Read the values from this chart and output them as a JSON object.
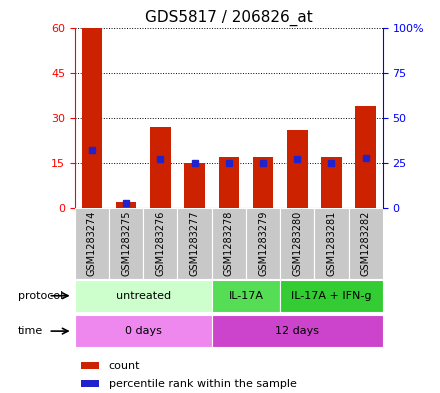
{
  "title": "GDS5817 / 206826_at",
  "samples": [
    "GSM1283274",
    "GSM1283275",
    "GSM1283276",
    "GSM1283277",
    "GSM1283278",
    "GSM1283279",
    "GSM1283280",
    "GSM1283281",
    "GSM1283282"
  ],
  "counts": [
    60,
    2,
    27,
    15,
    17,
    17,
    26,
    17,
    34
  ],
  "percentile_ranks": [
    32,
    3,
    27,
    25,
    25,
    25,
    27,
    25,
    28
  ],
  "ylim_left": [
    0,
    60
  ],
  "ylim_right": [
    0,
    100
  ],
  "yticks_left": [
    0,
    15,
    30,
    45,
    60
  ],
  "yticks_right": [
    0,
    25,
    50,
    75,
    100
  ],
  "ytick_labels_right": [
    "0",
    "25",
    "50",
    "75",
    "100%"
  ],
  "protocol_groups": [
    {
      "label": "untreated",
      "start": 0,
      "end": 4,
      "color": "#ccffcc"
    },
    {
      "label": "IL-17A",
      "start": 4,
      "end": 6,
      "color": "#55dd55"
    },
    {
      "label": "IL-17A + IFN-g",
      "start": 6,
      "end": 9,
      "color": "#33cc33"
    }
  ],
  "time_groups": [
    {
      "label": "0 days",
      "start": 0,
      "end": 4,
      "color": "#ee88ee"
    },
    {
      "label": "12 days",
      "start": 4,
      "end": 9,
      "color": "#cc44cc"
    }
  ],
  "bar_color": "#cc2200",
  "dot_color": "#2222cc",
  "grid_color": "#000000",
  "sample_bg_color": "#c8c8c8",
  "title_fontsize": 11,
  "tick_fontsize": 8,
  "label_fontsize": 8
}
